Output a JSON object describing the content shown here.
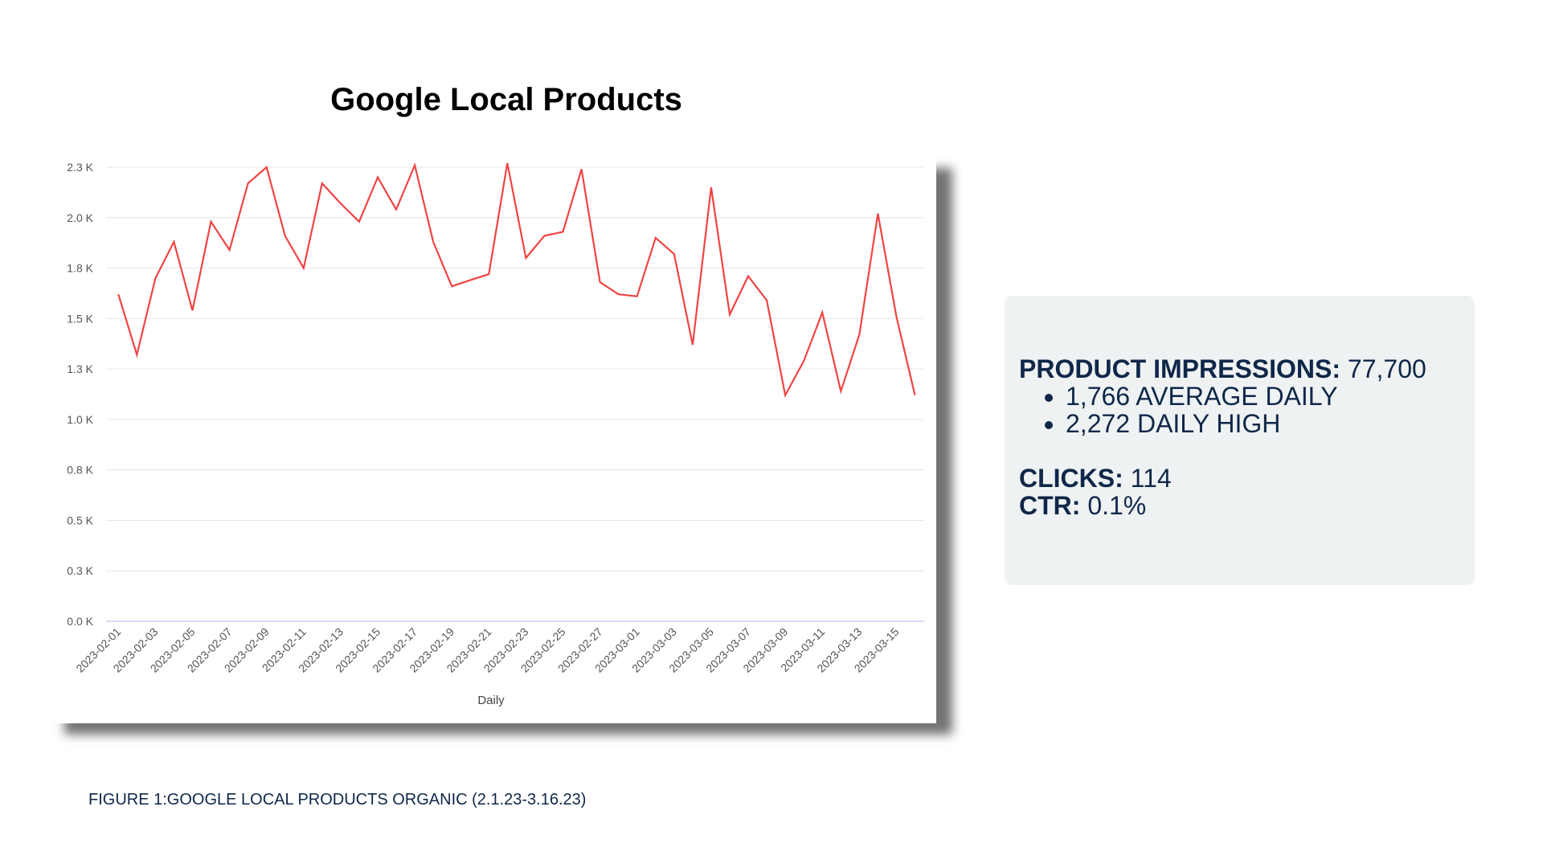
{
  "slide": {
    "title": "Google Local Products",
    "caption": "FIGURE 1:GOOGLE LOCAL PRODUCTS ORGANIC (2.1.23-3.16.23)"
  },
  "stats": {
    "impressions_label": "PRODUCT IMPRESSIONS:",
    "impressions_value": "77,700",
    "bullets": [
      "1,766 AVERAGE DAILY",
      "2,272 DAILY HIGH"
    ],
    "clicks_label": "CLICKS:",
    "clicks_value": "114",
    "ctr_label": "CTR:",
    "ctr_value": "0.1%"
  },
  "colors": {
    "line": "#f04444",
    "grid": "#e6e6e6",
    "baseline": "#c8cdf0",
    "stats_text": "#0f2748",
    "stats_bg": "#eff2f3"
  },
  "chart_data": {
    "type": "line",
    "title": "",
    "xlabel": "Daily",
    "ylabel": "",
    "ylim": [
      0,
      2250
    ],
    "yticks": [
      0,
      250,
      500,
      750,
      1000,
      1250,
      1500,
      1750,
      2000,
      2250
    ],
    "ytick_labels": [
      "0.0 K",
      "0.3 K",
      "0.5 K",
      "0.8 K",
      "1.0 K",
      "1.3 K",
      "1.5 K",
      "1.8 K",
      "2.0 K",
      "2.3 K"
    ],
    "xtick_labels": [
      "2023-02-01",
      "2023-02-03",
      "2023-02-05",
      "2023-02-07",
      "2023-02-09",
      "2023-02-11",
      "2023-02-13",
      "2023-02-15",
      "2023-02-17",
      "2023-02-19",
      "2023-02-21",
      "2023-02-23",
      "2023-02-25",
      "2023-02-27",
      "2023-03-01",
      "2023-03-03",
      "2023-03-05",
      "2023-03-07",
      "2023-03-09",
      "2023-03-11",
      "2023-03-13",
      "2023-03-15"
    ],
    "grid": true,
    "legend": "none",
    "x": [
      "2023-02-01",
      "2023-02-02",
      "2023-02-03",
      "2023-02-04",
      "2023-02-05",
      "2023-02-06",
      "2023-02-07",
      "2023-02-08",
      "2023-02-09",
      "2023-02-10",
      "2023-02-11",
      "2023-02-12",
      "2023-02-13",
      "2023-02-14",
      "2023-02-15",
      "2023-02-16",
      "2023-02-17",
      "2023-02-18",
      "2023-02-19",
      "2023-02-20",
      "2023-02-21",
      "2023-02-22",
      "2023-02-23",
      "2023-02-24",
      "2023-02-25",
      "2023-02-26",
      "2023-02-27",
      "2023-02-28",
      "2023-03-01",
      "2023-03-02",
      "2023-03-03",
      "2023-03-04",
      "2023-03-05",
      "2023-03-06",
      "2023-03-07",
      "2023-03-08",
      "2023-03-09",
      "2023-03-10",
      "2023-03-11",
      "2023-03-12",
      "2023-03-13",
      "2023-03-14",
      "2023-03-15",
      "2023-03-16"
    ],
    "series": [
      {
        "values": [
          1620,
          1320,
          1700,
          1880,
          1540,
          1980,
          1840,
          2170,
          2250,
          1910,
          1750,
          2170,
          2070,
          1980,
          2200,
          2040,
          2260,
          1880,
          1660,
          1690,
          1720,
          2270,
          1800,
          1910,
          1930,
          2240,
          1680,
          1620,
          1610,
          1900,
          1820,
          1370,
          2150,
          1520,
          1710,
          1590,
          1120,
          1290,
          1530,
          1140,
          1420,
          2020,
          1510,
          1120
        ]
      }
    ]
  }
}
